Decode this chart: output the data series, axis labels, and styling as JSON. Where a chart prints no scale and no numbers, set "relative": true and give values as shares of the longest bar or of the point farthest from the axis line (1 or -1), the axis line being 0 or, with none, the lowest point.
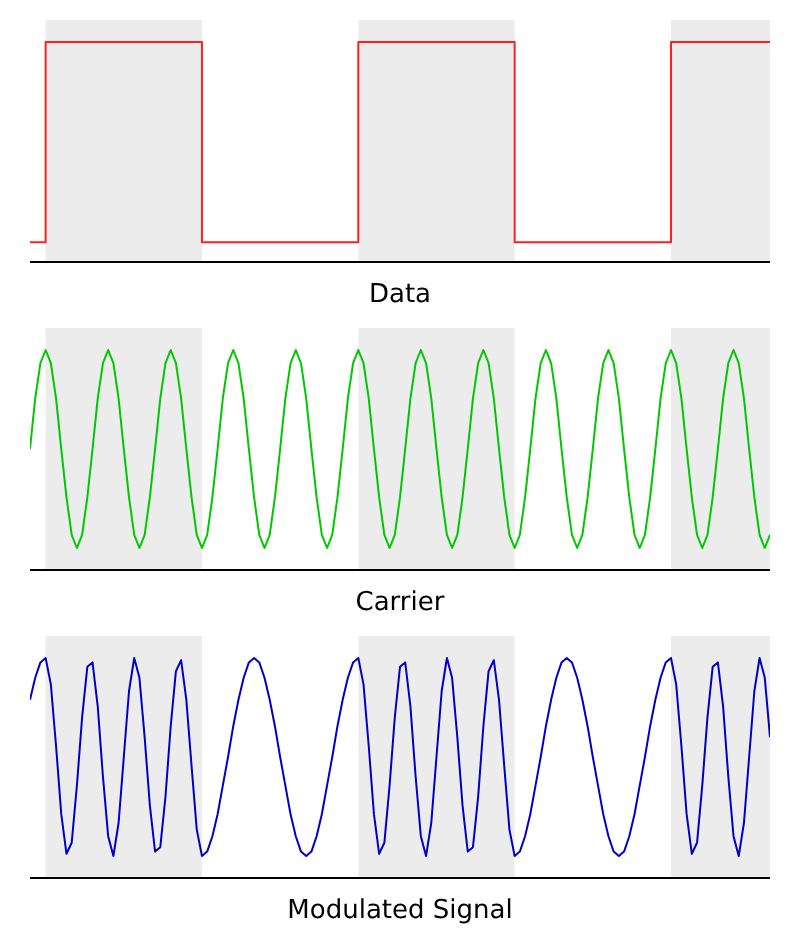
{
  "chart_data": [
    {
      "type": "step",
      "xlabel": "Data",
      "relative": true,
      "legend": false,
      "categories": [
        null,
        null,
        null,
        null,
        null,
        null,
        null,
        null,
        null,
        null,
        null,
        null,
        null,
        null,
        null,
        null,
        null,
        null,
        null,
        null,
        null,
        null,
        null,
        null,
        null,
        null,
        null,
        null,
        null,
        null,
        null,
        null,
        null,
        null,
        null,
        null,
        null,
        null,
        null,
        null,
        null,
        null,
        null,
        null,
        null,
        null,
        null,
        null,
        null,
        null,
        null,
        null,
        null,
        null,
        null,
        null,
        null,
        null,
        null,
        null,
        null,
        null,
        null,
        null,
        null,
        null,
        null,
        null,
        null,
        null,
        null,
        null,
        null,
        null,
        null,
        null,
        null,
        null,
        null,
        null,
        null,
        null,
        null,
        null,
        null,
        null,
        null,
        null,
        null,
        null,
        null,
        null,
        null,
        null,
        null,
        null,
        null,
        null,
        null,
        null,
        null,
        null,
        null,
        null,
        null,
        null,
        null,
        null,
        null,
        null,
        null,
        null,
        null,
        null,
        null,
        null,
        null,
        null,
        null,
        null,
        null,
        null,
        null,
        null,
        null,
        null,
        null,
        null,
        null,
        null,
        null,
        null,
        null,
        null,
        null,
        null,
        null,
        null,
        null,
        null,
        null,
        null,
        null
      ],
      "series": [
        {
          "color": "#ff2020",
          "values": [
            0.09,
            0.09,
            0.09,
            1,
            1,
            1,
            1,
            1,
            1,
            1,
            1,
            1,
            1,
            1,
            1,
            1,
            1,
            1,
            1,
            1,
            1,
            1,
            1,
            1,
            1,
            1,
            1,
            1,
            1,
            1,
            1,
            1,
            1,
            0.09,
            0.09,
            0.09,
            0.09,
            0.09,
            0.09,
            0.09,
            0.09,
            0.09,
            0.09,
            0.09,
            0.09,
            0.09,
            0.09,
            0.09,
            0.09,
            0.09,
            0.09,
            0.09,
            0.09,
            0.09,
            0.09,
            0.09,
            0.09,
            0.09,
            0.09,
            0.09,
            0.09,
            0.09,
            0.09,
            1,
            1,
            1,
            1,
            1,
            1,
            1,
            1,
            1,
            1,
            1,
            1,
            1,
            1,
            1,
            1,
            1,
            1,
            1,
            1,
            1,
            1,
            1,
            1,
            1,
            1,
            1,
            1,
            1,
            1,
            0.09,
            0.09,
            0.09,
            0.09,
            0.09,
            0.09,
            0.09,
            0.09,
            0.09,
            0.09,
            0.09,
            0.09,
            0.09,
            0.09,
            0.09,
            0.09,
            0.09,
            0.09,
            0.09,
            0.09,
            0.09,
            0.09,
            0.09,
            0.09,
            0.09,
            0.09,
            0.09,
            0.09,
            0.09,
            0.09,
            1,
            1,
            1,
            1,
            1,
            1,
            1,
            1,
            1,
            1,
            1,
            1,
            1,
            1,
            1,
            1,
            1,
            1,
            1,
            1
          ]
        }
      ]
    },
    {
      "type": "line",
      "xlabel": "Carrier",
      "relative": true,
      "legend": false,
      "categories": [
        null,
        null,
        null,
        null,
        null,
        null,
        null,
        null,
        null,
        null,
        null,
        null,
        null,
        null,
        null,
        null,
        null,
        null,
        null,
        null,
        null,
        null,
        null,
        null,
        null,
        null,
        null,
        null,
        null,
        null,
        null,
        null,
        null,
        null,
        null,
        null,
        null,
        null,
        null,
        null,
        null,
        null,
        null,
        null,
        null,
        null,
        null,
        null,
        null,
        null,
        null,
        null,
        null,
        null,
        null,
        null,
        null,
        null,
        null,
        null,
        null,
        null,
        null,
        null,
        null,
        null,
        null,
        null,
        null,
        null,
        null,
        null,
        null,
        null,
        null,
        null,
        null,
        null,
        null,
        null,
        null,
        null,
        null,
        null,
        null,
        null,
        null,
        null,
        null,
        null,
        null,
        null,
        null,
        null,
        null,
        null,
        null,
        null,
        null,
        null,
        null,
        null,
        null,
        null,
        null,
        null,
        null,
        null,
        null,
        null,
        null,
        null,
        null,
        null,
        null,
        null,
        null,
        null,
        null,
        null,
        null,
        null,
        null,
        null,
        null,
        null,
        null,
        null,
        null,
        null,
        null,
        null,
        null,
        null,
        null,
        null,
        null,
        null,
        null,
        null,
        null,
        null,
        null
      ],
      "series": [
        {
          "color": "#00c800",
          "values": [
            0.55,
            0.78,
            0.94,
            1,
            0.94,
            0.78,
            0.55,
            0.33,
            0.16,
            0.1,
            0.16,
            0.33,
            0.55,
            0.78,
            0.94,
            1,
            0.94,
            0.78,
            0.55,
            0.33,
            0.16,
            0.1,
            0.16,
            0.33,
            0.55,
            0.78,
            0.94,
            1,
            0.94,
            0.78,
            0.55,
            0.33,
            0.16,
            0.1,
            0.16,
            0.33,
            0.55,
            0.78,
            0.94,
            1,
            0.94,
            0.78,
            0.55,
            0.33,
            0.16,
            0.1,
            0.16,
            0.33,
            0.55,
            0.78,
            0.94,
            1,
            0.94,
            0.78,
            0.55,
            0.33,
            0.16,
            0.1,
            0.16,
            0.33,
            0.55,
            0.78,
            0.94,
            1,
            0.94,
            0.78,
            0.55,
            0.33,
            0.16,
            0.1,
            0.16,
            0.33,
            0.55,
            0.78,
            0.94,
            1,
            0.94,
            0.78,
            0.55,
            0.33,
            0.16,
            0.1,
            0.16,
            0.33,
            0.55,
            0.78,
            0.94,
            1,
            0.94,
            0.78,
            0.55,
            0.33,
            0.16,
            0.1,
            0.16,
            0.33,
            0.55,
            0.78,
            0.94,
            1,
            0.94,
            0.78,
            0.55,
            0.33,
            0.16,
            0.1,
            0.16,
            0.33,
            0.55,
            0.78,
            0.94,
            1,
            0.94,
            0.78,
            0.55,
            0.33,
            0.16,
            0.1,
            0.16,
            0.33,
            0.55,
            0.78,
            0.94,
            1,
            0.94,
            0.78,
            0.55,
            0.33,
            0.16,
            0.1,
            0.16,
            0.33,
            0.55,
            0.78,
            0.94,
            1,
            0.94,
            0.78,
            0.55,
            0.33,
            0.16,
            0.1,
            0.16
          ]
        }
      ]
    },
    {
      "type": "line",
      "xlabel": "Modulated Signal",
      "relative": true,
      "legend": false,
      "categories": [
        null,
        null,
        null,
        null,
        null,
        null,
        null,
        null,
        null,
        null,
        null,
        null,
        null,
        null,
        null,
        null,
        null,
        null,
        null,
        null,
        null,
        null,
        null,
        null,
        null,
        null,
        null,
        null,
        null,
        null,
        null,
        null,
        null,
        null,
        null,
        null,
        null,
        null,
        null,
        null,
        null,
        null,
        null,
        null,
        null,
        null,
        null,
        null,
        null,
        null,
        null,
        null,
        null,
        null,
        null,
        null,
        null,
        null,
        null,
        null,
        null,
        null,
        null,
        null,
        null,
        null,
        null,
        null,
        null,
        null,
        null,
        null,
        null,
        null,
        null,
        null,
        null,
        null,
        null,
        null,
        null,
        null,
        null,
        null,
        null,
        null,
        null,
        null,
        null,
        null,
        null,
        null,
        null,
        null,
        null,
        null,
        null,
        null,
        null,
        null,
        null,
        null,
        null,
        null,
        null,
        null,
        null,
        null,
        null,
        null,
        null,
        null,
        null,
        null,
        null,
        null,
        null,
        null,
        null,
        null,
        null,
        null,
        null,
        null,
        null,
        null,
        null,
        null,
        null,
        null,
        null,
        null,
        null,
        null,
        null,
        null,
        null,
        null,
        null,
        null,
        null,
        null,
        null
      ],
      "series": [
        {
          "color": "#0000c8",
          "values": [
            0.81,
            0.91,
            0.98,
            1,
            0.88,
            0.6,
            0.29,
            0.11,
            0.16,
            0.42,
            0.73,
            0.96,
            0.98,
            0.78,
            0.46,
            0.19,
            0.1,
            0.25,
            0.55,
            0.85,
            1,
            0.91,
            0.64,
            0.33,
            0.12,
            0.14,
            0.37,
            0.69,
            0.94,
            0.99,
            0.81,
            0.51,
            0.22,
            0.1,
            0.12,
            0.19,
            0.29,
            0.42,
            0.55,
            0.69,
            0.81,
            0.91,
            0.98,
            1,
            0.98,
            0.91,
            0.81,
            0.69,
            0.55,
            0.42,
            0.29,
            0.19,
            0.12,
            0.1,
            0.12,
            0.19,
            0.29,
            0.42,
            0.55,
            0.69,
            0.81,
            0.91,
            0.98,
            1,
            0.88,
            0.6,
            0.29,
            0.11,
            0.16,
            0.42,
            0.73,
            0.96,
            0.98,
            0.78,
            0.46,
            0.19,
            0.1,
            0.25,
            0.55,
            0.85,
            1,
            0.91,
            0.64,
            0.33,
            0.12,
            0.14,
            0.37,
            0.69,
            0.94,
            0.99,
            0.81,
            0.51,
            0.22,
            0.1,
            0.12,
            0.19,
            0.29,
            0.42,
            0.55,
            0.69,
            0.81,
            0.91,
            0.98,
            1,
            0.98,
            0.91,
            0.81,
            0.69,
            0.55,
            0.42,
            0.29,
            0.19,
            0.12,
            0.1,
            0.12,
            0.19,
            0.29,
            0.42,
            0.55,
            0.69,
            0.81,
            0.91,
            0.98,
            1,
            0.88,
            0.6,
            0.29,
            0.11,
            0.16,
            0.42,
            0.73,
            0.96,
            0.98,
            0.78,
            0.46,
            0.19,
            0.1,
            0.25,
            0.55,
            0.85,
            1,
            0.91,
            0.64
          ]
        }
      ]
    }
  ]
}
